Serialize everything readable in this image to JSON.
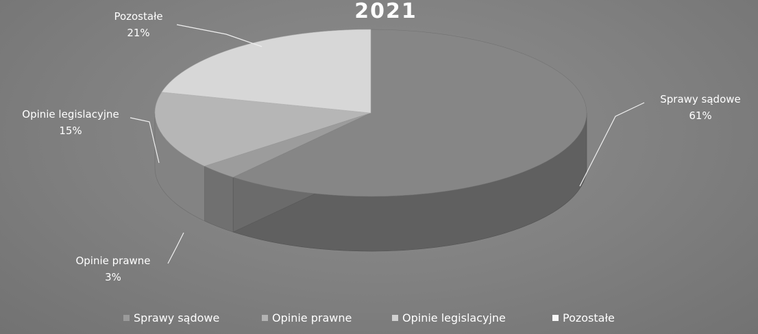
{
  "chart_data": {
    "type": "pie",
    "title": "2021",
    "series": [
      {
        "name": "Sprawy sądowe",
        "label": "Sprawy sądowe",
        "pct_label": "61%",
        "value": 61,
        "color": "#868686"
      },
      {
        "name": "Opinie prawne",
        "label": "Opinie prawne",
        "pct_label": "3%",
        "value": 3,
        "color": "#9c9c9c"
      },
      {
        "name": "Opinie legislacyjne",
        "label": "Opinie legislacyjne",
        "pct_label": "15%",
        "value": 15,
        "color": "#b6b6b6"
      },
      {
        "name": "Pozostałe",
        "label": "Pozostałe",
        "pct_label": "21%",
        "value": 21,
        "color": "#d7d7d7"
      }
    ],
    "legend_position": "bottom"
  }
}
